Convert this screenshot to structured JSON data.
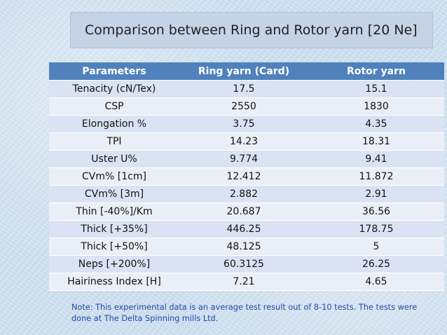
{
  "title": "Comparison between Ring and Rotor yarn [20 Ne]",
  "table": {
    "headers": [
      "Parameters",
      "Ring yarn (Card)",
      "Rotor yarn"
    ],
    "rows": [
      [
        "Tenacity (cN/Tex)",
        "17.5",
        "15.1"
      ],
      [
        "CSP",
        "2550",
        "1830"
      ],
      [
        "Elongation %",
        "3.75",
        "4.35"
      ],
      [
        "TPI",
        "14.23",
        "18.31"
      ],
      [
        "Uster U%",
        "9.774",
        "9.41"
      ],
      [
        "CVm% [1cm]",
        "12.412",
        "11.872"
      ],
      [
        "CVm% [3m]",
        "2.882",
        "2.91"
      ],
      [
        "Thin [-40%]/Km",
        "20.687",
        "36.56"
      ],
      [
        "Thick [+35%]",
        "446.25",
        "178.75"
      ],
      [
        "Thick [+50%]",
        "48.125",
        "5"
      ],
      [
        "Neps [+200%]",
        "60.3125",
        "26.25"
      ],
      [
        "Hairiness Index [H]",
        "7.21",
        "4.65"
      ]
    ]
  },
  "note": "Note: This experimental data is an average test result out of 8-10 tests. The tests were done at The Delta Spinning mills Ltd."
}
